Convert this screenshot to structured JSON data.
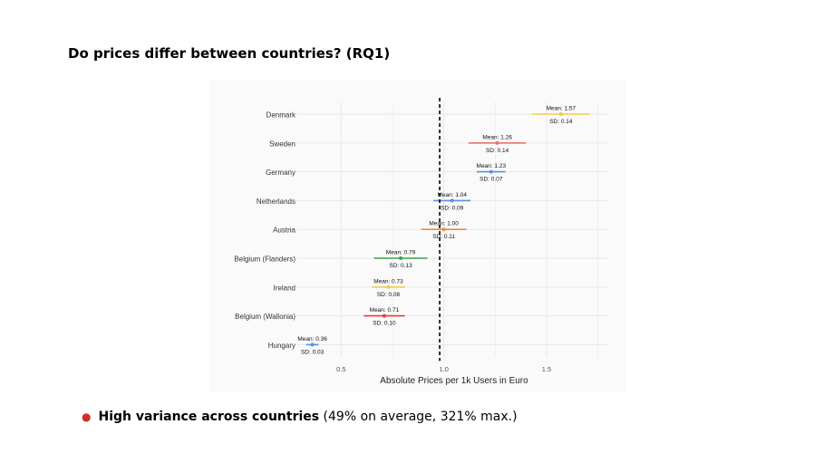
{
  "slide": {
    "title": "Do prices differ between countries? (RQ1)"
  },
  "bullet": {
    "strong": "High variance across countries",
    "rest": " (49% on average, 321% max.)",
    "dot_color": "#d0312d"
  },
  "chart_data": {
    "type": "scatter",
    "xlabel": "Absolute Prices per 1k Users in Euro",
    "ylabel": "",
    "xlim": [
      0.3,
      1.8
    ],
    "xticks": [
      0.5,
      1.0,
      1.5
    ],
    "xtick_labels": [
      "0.5",
      "1.0",
      "1.5"
    ],
    "reference_line": {
      "x": 0.98,
      "style": "dashed",
      "color": "#000000"
    },
    "grid": true,
    "legend": "none",
    "rows": [
      {
        "category": "Denmark",
        "mean": 1.57,
        "sd": 0.14,
        "mean_label": "Mean: 1.57",
        "sd_label": "SD: 0.14",
        "color": "#f2c94c"
      },
      {
        "category": "Sweden",
        "mean": 1.26,
        "sd": 0.14,
        "mean_label": "Mean: 1.26",
        "sd_label": "SD: 0.14",
        "color": "#e8756a"
      },
      {
        "category": "Germany",
        "mean": 1.23,
        "sd": 0.07,
        "mean_label": "Mean: 1.23",
        "sd_label": "SD: 0.07",
        "color": "#5b8fe0"
      },
      {
        "category": "Netherlands",
        "mean": 1.04,
        "sd": 0.09,
        "mean_label": "Mean: 1.04",
        "sd_label": "SD: 0.09",
        "color": "#5b8fe0"
      },
      {
        "category": "Austria",
        "mean": 1.0,
        "sd": 0.11,
        "mean_label": "Mean: 1.00",
        "sd_label": "SD: 0.11",
        "color": "#f08a3e"
      },
      {
        "category": "Belgium (Flanders)",
        "mean": 0.79,
        "sd": 0.13,
        "mean_label": "Mean: 0.79",
        "sd_label": "SD: 0.13",
        "color": "#3aa24a"
      },
      {
        "category": "Ireland",
        "mean": 0.73,
        "sd": 0.08,
        "mean_label": "Mean: 0.73",
        "sd_label": "SD: 0.08",
        "color": "#f2c94c"
      },
      {
        "category": "Belgium (Wallonia)",
        "mean": 0.71,
        "sd": 0.1,
        "mean_label": "Mean: 0.71",
        "sd_label": "SD: 0.10",
        "color": "#e0403a"
      },
      {
        "category": "Hungary",
        "mean": 0.36,
        "sd": 0.03,
        "mean_label": "Mean: 0.36",
        "sd_label": "SD: 0.03",
        "color": "#5b8fe0"
      }
    ]
  }
}
